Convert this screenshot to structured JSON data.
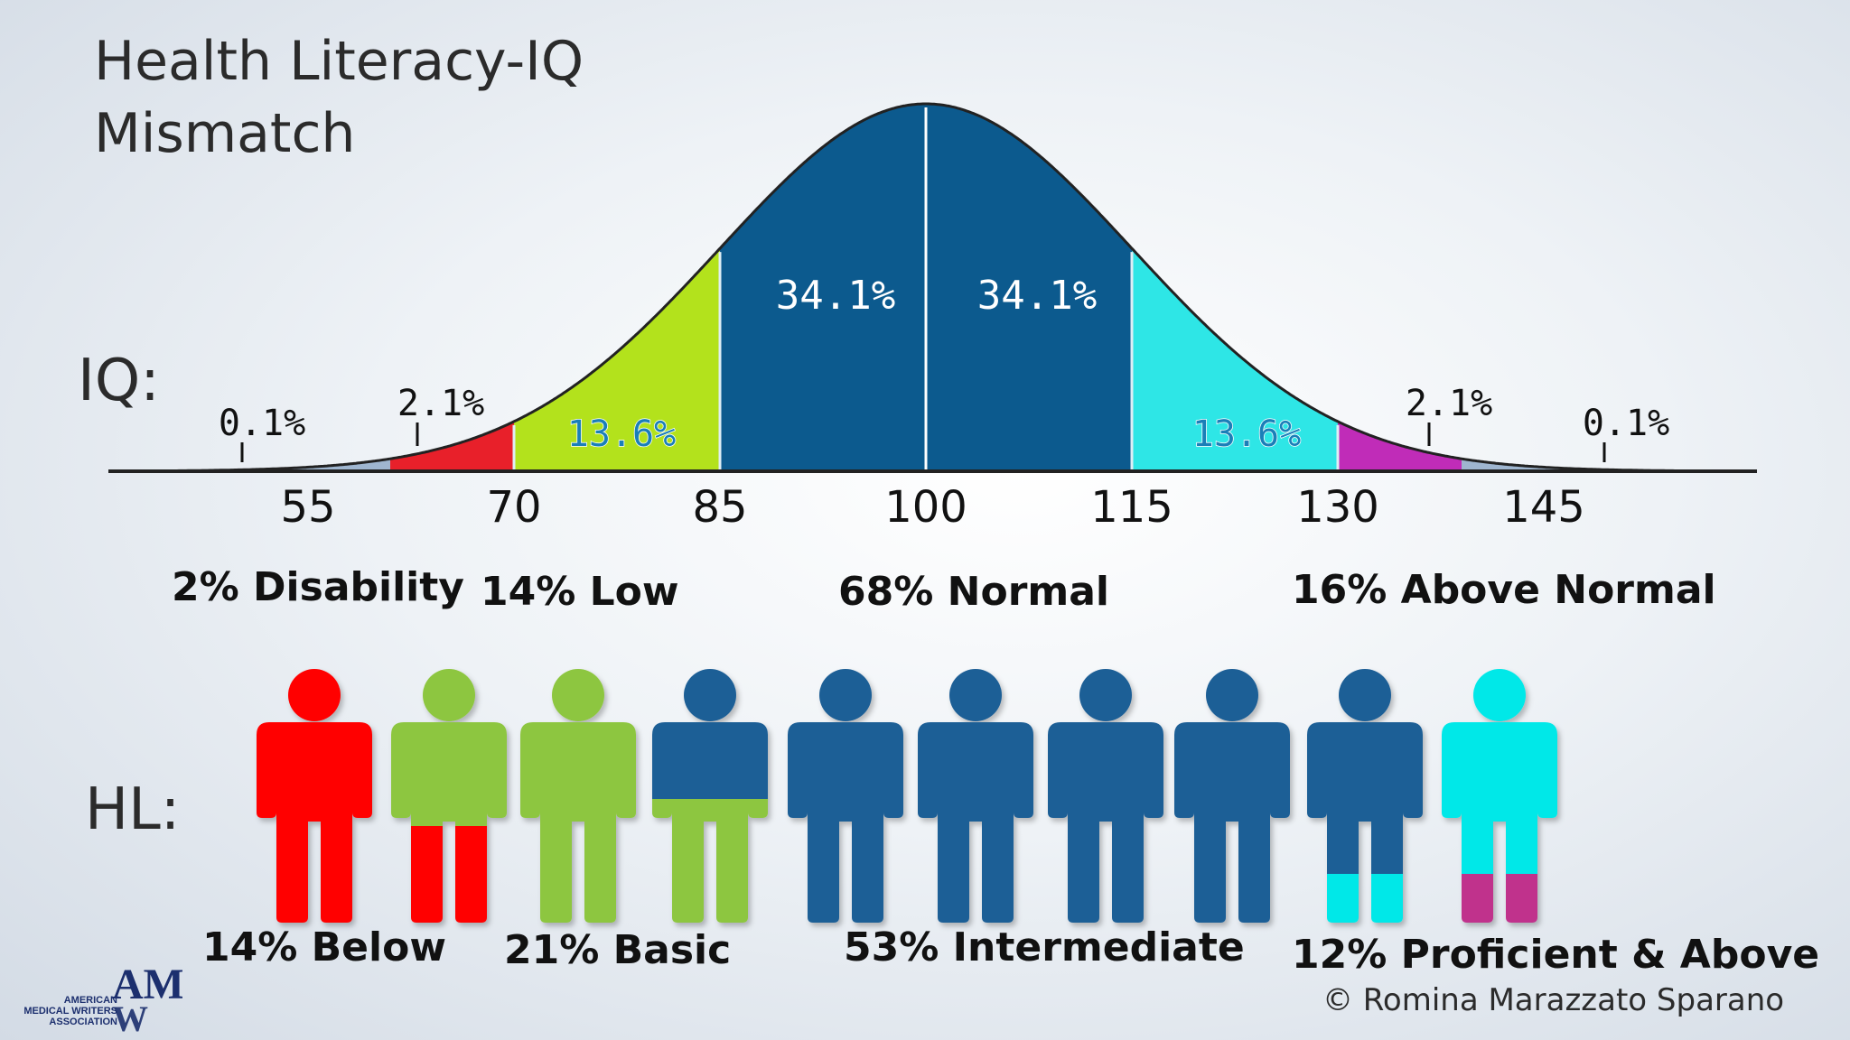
{
  "title_line1": "Health Literacy-IQ",
  "title_line2": "Mismatch",
  "iq_label": "IQ:",
  "hl_label": "HL:",
  "curve": {
    "x_ticks": [
      "55",
      "70",
      "85",
      "100",
      "115",
      "130",
      "145"
    ],
    "region_labels": [
      "0.1%",
      "2.1%",
      "13.6%",
      "34.1%",
      "34.1%",
      "13.6%",
      "2.1%",
      "0.1%"
    ],
    "colors": {
      "far_tail": "#9fb6d0",
      "red": "#e8202a",
      "lime": "#b3e21c",
      "navy": "#0c5a8e",
      "cyan": "#2ee6e6",
      "magenta": "#c02cb8",
      "axis": "#222222"
    }
  },
  "iq_categories": [
    "2% Disability",
    "14% Low",
    "68% Normal",
    "16% Above Normal"
  ],
  "hl_categories": [
    "14% Below",
    "21% Basic",
    "53% Intermediate",
    "12% Proficient & Above"
  ],
  "people": [
    {
      "top": "#ff0000",
      "bottom": "#ff0000"
    },
    {
      "top": "#8dc63f",
      "bottom": "#ff0000"
    },
    {
      "top": "#8dc63f",
      "bottom": "#8dc63f"
    },
    {
      "top": "#1f5f96",
      "bottom": "#8dc63f"
    },
    {
      "top": "#1f5f96",
      "bottom": "#1f5f96"
    },
    {
      "top": "#1f5f96",
      "bottom": "#1f5f96"
    },
    {
      "top": "#1f5f96",
      "bottom": "#1f5f96"
    },
    {
      "top": "#1f5f96",
      "bottom": "#1f5f96"
    },
    {
      "top": "#1f5f96",
      "bottom": "#00e8e8"
    },
    {
      "top": "#00e8e8",
      "bottom": "#c0308c"
    }
  ],
  "credit": "© Romina Marazzato Sparano",
  "logo": {
    "mark": "AMWA",
    "line1": "AMERICAN",
    "line2": "MEDICAL WRITERS",
    "line3": "ASSOCIATION"
  }
}
